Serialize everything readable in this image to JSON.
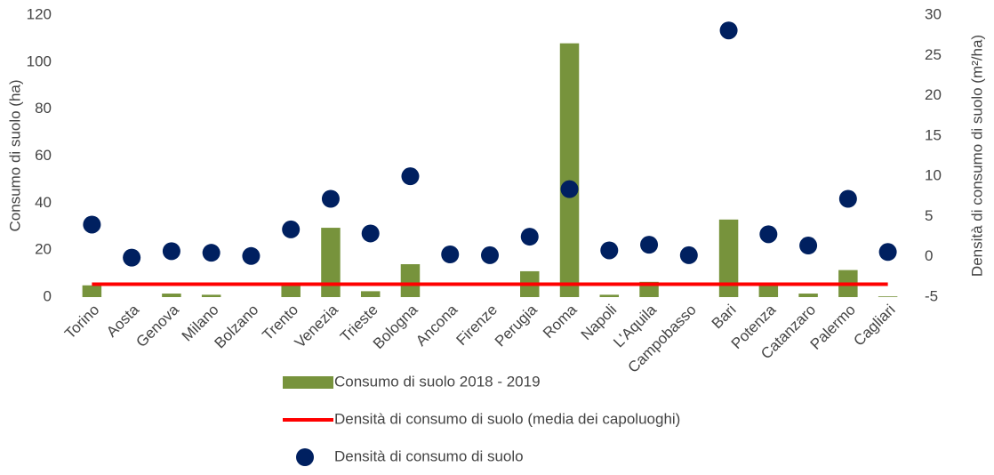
{
  "chart_data": {
    "type": "combo",
    "categories": [
      "Torino",
      "Aosta",
      "Genova",
      "Milano",
      "Bolzano",
      "Trento",
      "Venezia",
      "Trieste",
      "Bologna",
      "Ancona",
      "Firenze",
      "Perugia",
      "Roma",
      "Napoli",
      "L'Aquila",
      "Campobasso",
      "Bari",
      "Potenza",
      "Catanzaro",
      "Palermo",
      "Cagliari"
    ],
    "y_label": "Consumo di suolo (ha)",
    "y2_label": "Densità di consumo di suolo (m²/ha)",
    "ylim": [
      0,
      120
    ],
    "yticks": [
      0,
      20,
      40,
      60,
      80,
      100,
      120
    ],
    "y2lim": [
      -5,
      30
    ],
    "y2ticks": [
      -5,
      0,
      5,
      10,
      15,
      20,
      25,
      30
    ],
    "legend": "bottom",
    "series": [
      {
        "name": "Consumo di suolo 2018 - 2019",
        "type": "bar",
        "color": "#77933c",
        "values": [
          5,
          0,
          1.5,
          1,
          0,
          5,
          29.5,
          2.5,
          14,
          0,
          0,
          11,
          108,
          1,
          6.5,
          0,
          33,
          5,
          1.5,
          11.5,
          0.3
        ]
      },
      {
        "name": "Densità di consumo di suolo (media dei capoluoghi)",
        "type": "line",
        "axis": "y2",
        "color": "#ff0000",
        "values": [
          -3.4,
          -3.4,
          -3.4,
          -3.4,
          -3.4,
          -3.4,
          -3.4,
          -3.4,
          -3.4,
          -3.4,
          -3.4,
          -3.4,
          -3.4,
          -3.4,
          -3.4,
          -3.4,
          -3.4,
          -3.4,
          -3.4,
          -3.4,
          -3.4
        ]
      },
      {
        "name": "Densità di consumo di suolo",
        "type": "scatter",
        "axis": "y2",
        "color": "#002060",
        "values": [
          4.0,
          -0.1,
          0.7,
          0.5,
          0.1,
          3.4,
          7.2,
          2.9,
          10.0,
          0.3,
          0.2,
          2.5,
          8.4,
          0.8,
          1.5,
          0.2,
          28.1,
          2.8,
          1.4,
          7.2,
          0.6
        ]
      }
    ]
  }
}
